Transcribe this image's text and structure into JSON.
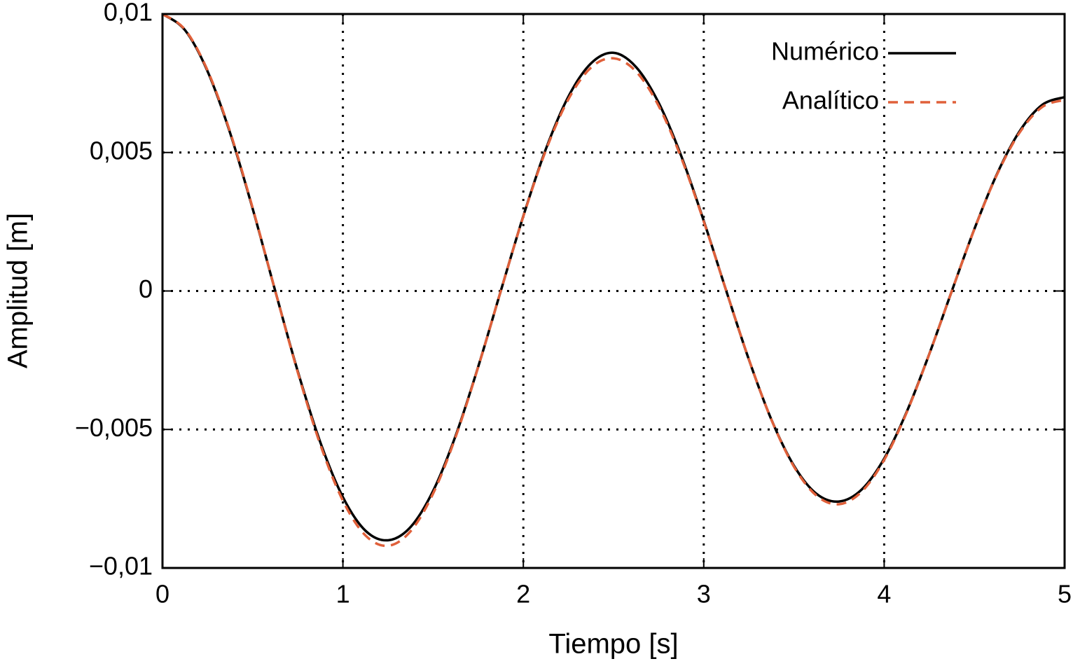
{
  "chart_data": {
    "type": "line",
    "x_label": "Tiempo [s]",
    "y_label": "Amplitud [m]",
    "x": [
      0,
      0.125,
      0.25,
      0.375,
      0.5,
      0.625,
      0.75,
      0.875,
      1,
      1.125,
      1.25,
      1.375,
      1.5,
      1.625,
      1.75,
      1.875,
      2,
      2.125,
      2.25,
      2.375,
      2.5,
      2.625,
      2.75,
      2.875,
      3,
      3.125,
      3.25,
      3.375,
      3.5,
      3.625,
      3.75,
      3.875,
      4,
      4.125,
      4.25,
      4.375,
      4.5,
      4.625,
      4.75,
      4.875,
      5
    ],
    "series": [
      {
        "name": "Numérico",
        "color": "#000000",
        "dash": "solid",
        "values": [
          0.01,
          0.009416,
          0.007928,
          0.005702,
          0.002966,
          0,
          -0.002905,
          -0.005467,
          -0.007443,
          -0.008655,
          -0.009,
          -0.008522,
          -0.007216,
          -0.00522,
          -0.002732,
          0,
          0.002707,
          0.005126,
          0.007022,
          0.008217,
          0.0086,
          0.008084,
          0.006796,
          0.004879,
          0.002534,
          0,
          -0.002472,
          -0.004644,
          -0.00631,
          -0.007323,
          -0.0076,
          -0.007171,
          -0.006051,
          -0.004361,
          -0.002274,
          0,
          0.002237,
          0.00422,
          0.00576,
          0.006715,
          0.007
        ]
      },
      {
        "name": "Analítico",
        "color": "#e0603a",
        "dash": "dashed",
        "values": [
          0.01,
          0.009435,
          0.007961,
          0.005737,
          0.002991,
          0,
          -0.002942,
          -0.005549,
          -0.007572,
          -0.008826,
          -0.0092,
          -0.008674,
          -0.007313,
          -0.005267,
          -0.002744,
          0,
          0.002694,
          0.005079,
          0.006925,
          0.008065,
          0.0084,
          0.007923,
          0.006682,
          0.004814,
          0.002509,
          0,
          -0.002466,
          -0.004649,
          -0.006343,
          -0.00739,
          -0.0077,
          -0.007247,
          -0.0061,
          -0.004385,
          -0.00228,
          0,
          0.002231,
          0.004197,
          0.005712,
          0.006639,
          0.0069
        ]
      }
    ],
    "xlim": [
      0,
      5
    ],
    "ylim": [
      -0.01,
      0.01
    ],
    "xticks": [
      0,
      1,
      2,
      3,
      4,
      5
    ],
    "yticks": [
      {
        "value": -0.01,
        "label": "−0,01"
      },
      {
        "value": -0.005,
        "label": "−0,005"
      },
      0,
      {
        "value": 0.005,
        "label": "0,005"
      },
      {
        "value": 0.01,
        "label": "0,01"
      }
    ],
    "grid": true,
    "legend": "upper right"
  }
}
